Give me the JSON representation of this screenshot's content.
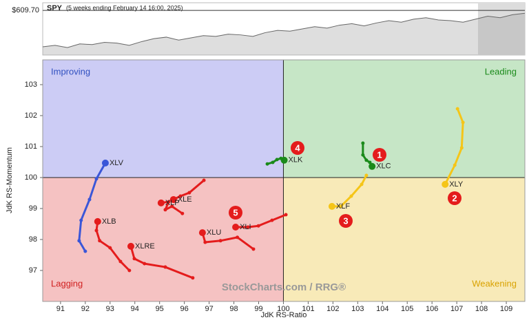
{
  "chart_data": {
    "type": "rrg",
    "title": "SPY",
    "subtitle": "(5 weeks ending February 14 16:00, 2025)",
    "last_price": {
      "value": 609.7,
      "label": "$609.70"
    },
    "price_ylim": [
      550,
      620
    ],
    "prices": [
      561,
      563,
      560,
      565,
      564,
      567,
      566,
      563,
      568,
      572,
      574,
      570,
      573,
      576,
      575,
      578,
      577,
      575,
      580,
      583,
      582,
      585,
      588,
      586,
      590,
      592,
      589,
      593,
      596,
      594,
      598,
      600,
      597,
      596,
      594,
      598,
      602,
      600,
      604,
      606
    ],
    "x_label": "JdK RS-Ratio",
    "y_label": "JdK RS-Momentum",
    "xlim": [
      90.28,
      109.75
    ],
    "ylim": [
      96.0,
      103.8
    ],
    "center": [
      100,
      100
    ],
    "xticks": [
      91,
      92,
      93,
      94,
      95,
      96,
      97,
      98,
      99,
      100,
      101,
      102,
      103,
      104,
      105,
      106,
      107,
      108,
      109
    ],
    "yticks": [
      97,
      98,
      99,
      100,
      101,
      102,
      103
    ],
    "quadrants": [
      {
        "name": "Improving",
        "color": "#ccccf5",
        "text_color": "#3050c0"
      },
      {
        "name": "Leading",
        "color": "#c6e6c6",
        "text_color": "#1a8a1a"
      },
      {
        "name": "Lagging",
        "color": "#f5c2c2",
        "text_color": "#d02020"
      },
      {
        "name": "Weakening",
        "color": "#f8eab8",
        "text_color": "#d9a200"
      }
    ],
    "watermark": "StockCharts.com / RRG®",
    "annotations": [
      "1",
      "2",
      "3",
      "4",
      "5"
    ],
    "series": [
      {
        "name": "XLV",
        "color": "#3a56d8",
        "x": [
          92.0,
          91.75,
          91.83,
          92.17,
          92.45,
          92.81
        ],
        "values": [
          97.62,
          97.96,
          98.62,
          99.29,
          99.96,
          100.47
        ]
      },
      {
        "name": "XLB",
        "color": "#e41c1c",
        "x": [
          93.78,
          93.42,
          93.0,
          92.58,
          92.45,
          92.5
        ],
        "values": [
          97.0,
          97.29,
          97.73,
          97.96,
          98.29,
          98.58
        ]
      },
      {
        "name": "XLRE",
        "color": "#e41c1c",
        "x": [
          96.34,
          95.23,
          94.39,
          93.98,
          93.84
        ],
        "values": [
          96.76,
          97.11,
          97.22,
          97.38,
          97.78
        ]
      },
      {
        "name": "XLE",
        "color": "#e41c1c",
        "x": [
          96.79,
          96.2,
          95.84,
          95.56
        ],
        "values": [
          99.91,
          99.51,
          99.4,
          99.29
        ]
      },
      {
        "name": "XLP",
        "color": "#e41c1c",
        "x": [
          95.92,
          95.5,
          95.23,
          95.37,
          95.06
        ],
        "values": [
          98.84,
          99.07,
          98.96,
          99.22,
          99.18
        ]
      },
      {
        "name": "XLU",
        "color": "#e41c1c",
        "x": [
          98.79,
          98.14,
          97.46,
          96.84,
          96.73
        ],
        "values": [
          97.69,
          98.07,
          97.96,
          97.91,
          98.22
        ]
      },
      {
        "name": "XLI",
        "color": "#e41c1c",
        "x": [
          100.1,
          99.54,
          98.99,
          98.57,
          98.07
        ],
        "values": [
          98.8,
          98.62,
          98.44,
          98.4,
          98.4
        ]
      },
      {
        "name": "XLK",
        "color": "#1a8a1a",
        "x": [
          99.35,
          99.57,
          99.74,
          99.9,
          100.03
        ],
        "values": [
          100.44,
          100.49,
          100.58,
          100.62,
          100.56
        ]
      },
      {
        "name": "XLC",
        "color": "#1a8a1a",
        "x": [
          103.21,
          103.21,
          103.35,
          103.49,
          103.58
        ],
        "values": [
          101.11,
          100.73,
          100.56,
          100.49,
          100.36
        ]
      },
      {
        "name": "XLF",
        "color": "#f5c518",
        "x": [
          103.35,
          103.16,
          102.74,
          102.32,
          101.96
        ],
        "values": [
          100.07,
          99.78,
          99.4,
          99.07,
          99.07
        ]
      },
      {
        "name": "XLY",
        "color": "#f5c518",
        "x": [
          107.03,
          107.25,
          107.2,
          106.92,
          106.53
        ],
        "values": [
          102.22,
          101.78,
          100.96,
          100.4,
          99.78
        ]
      }
    ]
  }
}
